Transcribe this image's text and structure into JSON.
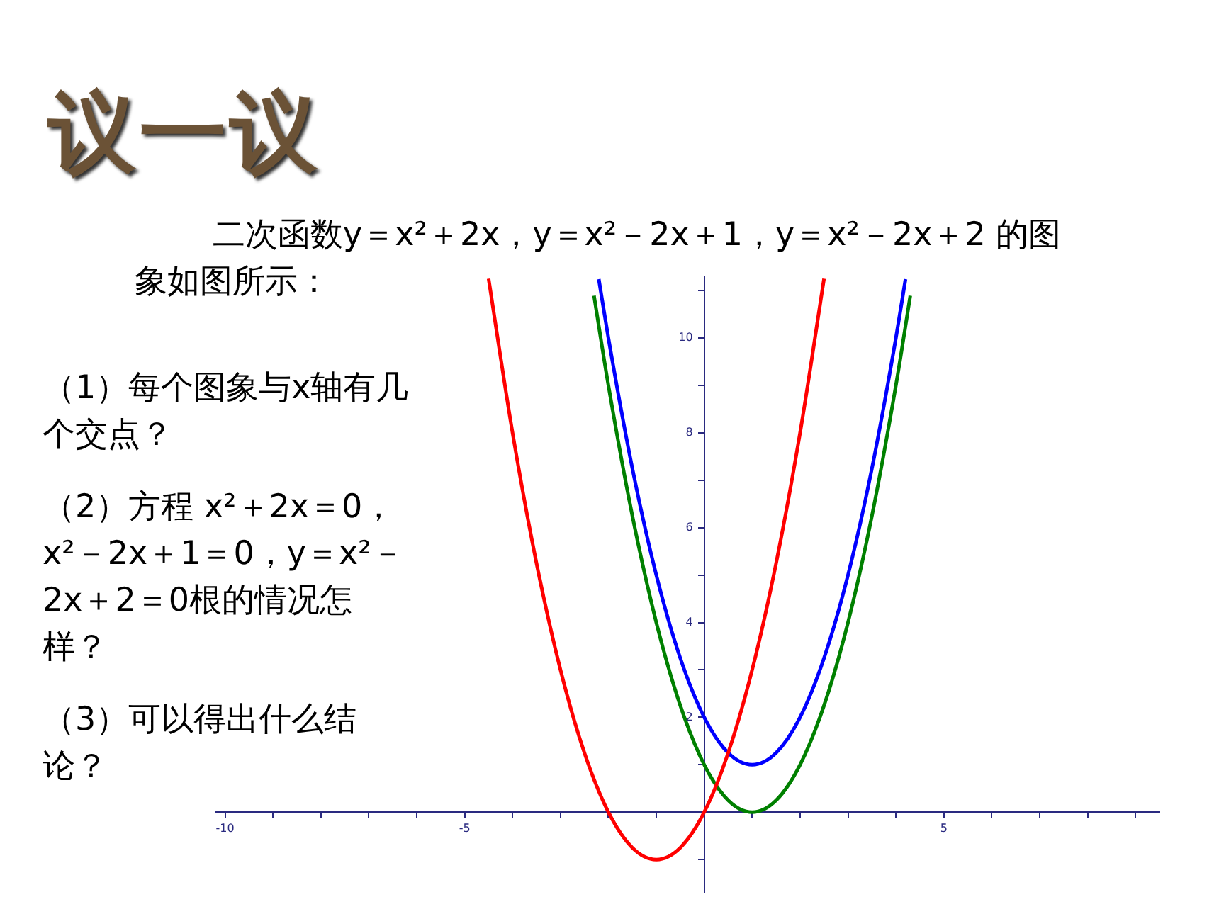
{
  "chart_data": {
    "type": "line",
    "title": "议一议",
    "annotations": [
      "二次函数y＝x²＋2x，y＝x²－2x＋1，y＝x²－2x＋2 的图象如图所示：",
      "（1）每个图象与x轴有几个交点？",
      "（2）方程 x²＋2x＝0，x²－2x＋1＝0，y＝x²－2x＋2＝0根的情况怎样？",
      "（3）可以得出什么结论？"
    ],
    "series": [
      {
        "color": "#ff0000",
        "x": [
          -4.5,
          -4,
          -3.5,
          -3,
          -2.5,
          -2,
          -1.5,
          -1,
          -0.5,
          0,
          0.5,
          1,
          1.5,
          2,
          2.5
        ],
        "values": [
          11.25,
          8,
          5.25,
          3,
          1.25,
          0,
          -0.75,
          -1,
          -0.75,
          0,
          1.25,
          3,
          5.25,
          8,
          11.25
        ]
      },
      {
        "color": "#008000",
        "x": [
          -2.3,
          -2,
          -1.5,
          -1,
          -0.5,
          0,
          0.5,
          1,
          1.5,
          2,
          2.5,
          3,
          3.5,
          4,
          4.3
        ],
        "values": [
          10.89,
          9,
          6.25,
          4,
          2.25,
          1,
          0.25,
          0,
          0.25,
          1,
          2.25,
          4,
          6.25,
          9,
          10.89
        ]
      },
      {
        "color": "#0000ff",
        "x": [
          -2.2,
          -2,
          -1.5,
          -1,
          -0.5,
          0,
          0.5,
          1,
          1.5,
          2,
          2.5,
          3,
          3.5,
          4,
          4.2
        ],
        "values": [
          11.24,
          10,
          7.25,
          5,
          3.25,
          2,
          1.25,
          1,
          1.25,
          2,
          3.25,
          5,
          7.25,
          10,
          11.24
        ]
      }
    ],
    "xlim": [
      -10.2,
      9.5
    ],
    "ylim": [
      -1.7,
      11.3
    ],
    "xticks": [
      {
        "value": -10,
        "label": "-10"
      },
      {
        "value": -9,
        "label": null
      },
      {
        "value": -8,
        "label": null
      },
      {
        "value": -7,
        "label": null
      },
      {
        "value": -6,
        "label": null
      },
      {
        "value": -5,
        "label": "-5"
      },
      {
        "value": -4,
        "label": null
      },
      {
        "value": -3,
        "label": null
      },
      {
        "value": -2,
        "label": null
      },
      {
        "value": -1,
        "label": null
      },
      {
        "value": 1,
        "label": null
      },
      {
        "value": 2,
        "label": null
      },
      {
        "value": 3,
        "label": null
      },
      {
        "value": 4,
        "label": null
      },
      {
        "value": 5,
        "label": "5"
      },
      {
        "value": 6,
        "label": null
      },
      {
        "value": 7,
        "label": null
      },
      {
        "value": 8,
        "label": null
      },
      {
        "value": 9,
        "label": null
      }
    ],
    "yticks": [
      {
        "value": -1,
        "label": null
      },
      {
        "value": 1,
        "label": null
      },
      {
        "value": 2,
        "label": "2"
      },
      {
        "value": 3,
        "label": null
      },
      {
        "value": 4,
        "label": "4"
      },
      {
        "value": 5,
        "label": null
      },
      {
        "value": 6,
        "label": "6"
      },
      {
        "value": 7,
        "label": null
      },
      {
        "value": 8,
        "label": "8"
      },
      {
        "value": 9,
        "label": null
      },
      {
        "value": 10,
        "label": "10"
      },
      {
        "value": 11,
        "label": null
      }
    ],
    "grid": false,
    "legend": false,
    "marker": "none",
    "line_style": "solid"
  }
}
